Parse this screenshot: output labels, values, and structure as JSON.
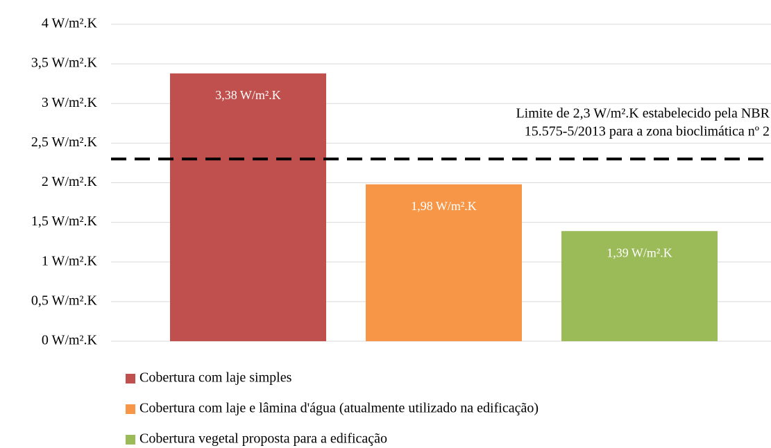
{
  "chart_data": {
    "type": "bar",
    "categories": [
      null
    ],
    "series": [
      {
        "name": "Cobertura com laje simples",
        "color": "#c0504d",
        "values": [
          3.38
        ],
        "value_labels": [
          "3,38 W/m².K"
        ]
      },
      {
        "name": "Cobertura com laje e lâmina d'água (atualmente utilizado na edificação)",
        "color": "#f79646",
        "values": [
          1.98
        ],
        "value_labels": [
          "1,98 W/m².K"
        ]
      },
      {
        "name": "Cobertura vegetal proposta para a edificação",
        "color": "#9bbb59",
        "values": [
          1.39
        ],
        "value_labels": [
          "1,39 W/m².K"
        ]
      }
    ],
    "ylim": [
      0,
      4
    ],
    "yticks": [
      {
        "value": 0,
        "label": "0 W/m².K"
      },
      {
        "value": 0.5,
        "label": "0,5 W/m².K"
      },
      {
        "value": 1,
        "label": "1 W/m².K"
      },
      {
        "value": 1.5,
        "label": "1,5 W/m².K"
      },
      {
        "value": 2,
        "label": "2 W/m².K"
      },
      {
        "value": 2.5,
        "label": "2,5 W/m².K"
      },
      {
        "value": 3,
        "label": "3 W/m².K"
      },
      {
        "value": 3.5,
        "label": "3,5 W/m².K"
      },
      {
        "value": 4,
        "label": "4 W/m².K"
      }
    ],
    "grid": true,
    "legend": "bottom",
    "reference_line": {
      "value": 2.3,
      "label": [
        "Limite de 2,3 W/m².K estabelecido pela NBR",
        "15.575-5/2013 para a zona bioclimática nº 2"
      ]
    }
  }
}
